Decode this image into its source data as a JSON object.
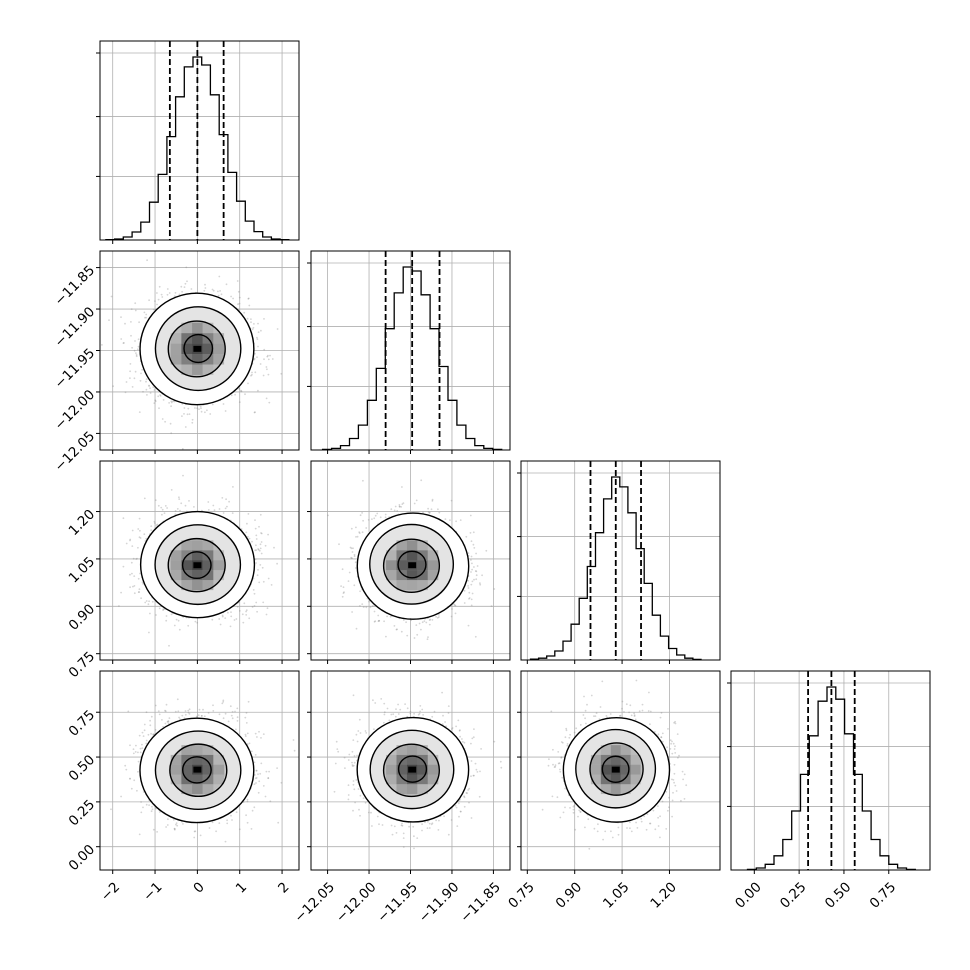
{
  "chart_data": {
    "type": "corner",
    "grid": true,
    "parameters": [
      {
        "name": "",
        "range": [
          -2.3,
          2.4
        ],
        "ticks": [
          "−2",
          "−1",
          "0",
          "1",
          "2"
        ],
        "tick_values": [
          -2,
          -1,
          0,
          1,
          2
        ],
        "quantiles": [
          -0.65,
          0.0,
          0.62
        ],
        "mean": 0.0,
        "sd": 0.6
      },
      {
        "name": "",
        "range": [
          -12.07,
          -11.83
        ],
        "ticks": [
          "−12.05",
          "−12.00",
          "−11.95",
          "−11.90",
          "−11.85"
        ],
        "tick_values": [
          -12.05,
          -12.0,
          -11.95,
          -11.9,
          -11.85
        ],
        "quantiles": [
          -11.98,
          -11.948,
          -11.915
        ],
        "mean": -11.948,
        "sd": 0.03
      },
      {
        "name": "",
        "range": [
          0.73,
          1.36
        ],
        "ticks": [
          "0.75",
          "0.90",
          "1.05",
          "1.20"
        ],
        "tick_values": [
          0.75,
          0.9,
          1.05,
          1.2
        ],
        "quantiles": [
          0.95,
          1.03,
          1.11
        ],
        "mean": 1.03,
        "sd": 0.075
      },
      {
        "name": "",
        "range": [
          -0.13,
          0.98
        ],
        "ticks": [
          "0.00",
          "0.25",
          "0.50",
          "0.75"
        ],
        "tick_values": [
          0.0,
          0.25,
          0.5,
          0.75
        ],
        "quantiles": [
          0.3,
          0.43,
          0.56
        ],
        "mean": 0.43,
        "sd": 0.13
      }
    ],
    "hist_heights": [
      [
        2,
        5,
        15,
        40,
        90,
        190,
        330,
        520,
        720,
        870,
        920,
        880,
        730,
        530,
        340,
        195,
        95,
        42,
        15,
        5,
        2
      ],
      [
        3,
        8,
        22,
        58,
        125,
        250,
        410,
        610,
        790,
        920,
        900,
        780,
        610,
        420,
        250,
        125,
        58,
        22,
        8,
        3
      ],
      [
        4,
        9,
        20,
        45,
        95,
        180,
        310,
        470,
        640,
        810,
        920,
        870,
        740,
        560,
        385,
        225,
        120,
        58,
        25,
        9,
        3
      ],
      [
        3,
        10,
        28,
        70,
        150,
        290,
        470,
        660,
        830,
        900,
        840,
        670,
        470,
        290,
        150,
        70,
        28,
        10,
        3
      ]
    ],
    "contour_levels_sigma": [
      0.5,
      1.0,
      1.5,
      2.0
    ]
  }
}
